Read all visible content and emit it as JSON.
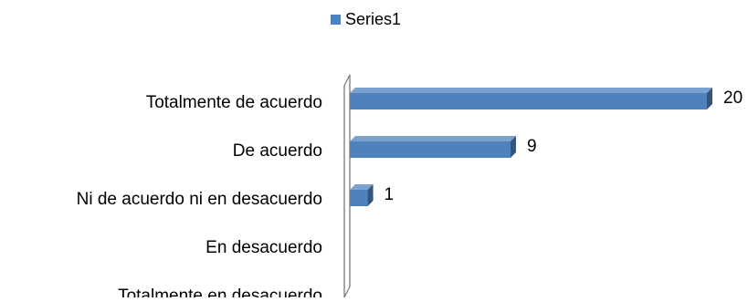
{
  "chart_data": {
    "type": "bar",
    "orientation": "horizontal",
    "style": "3d",
    "legend_position": "top-center",
    "grid": false,
    "xlim": [
      0,
      20
    ],
    "categories": [
      "Totalmente de acuerdo",
      "De acuerdo",
      "Ni de acuerdo ni en desacuerdo",
      "En desacuerdo",
      "Totalmente en desacuerdo"
    ],
    "series": [
      {
        "name": "Series1",
        "values": [
          20,
          9,
          1,
          0,
          0
        ],
        "color": "#4f81bd"
      }
    ],
    "data_labels": [
      "20",
      "9",
      "1",
      "",
      ""
    ]
  }
}
